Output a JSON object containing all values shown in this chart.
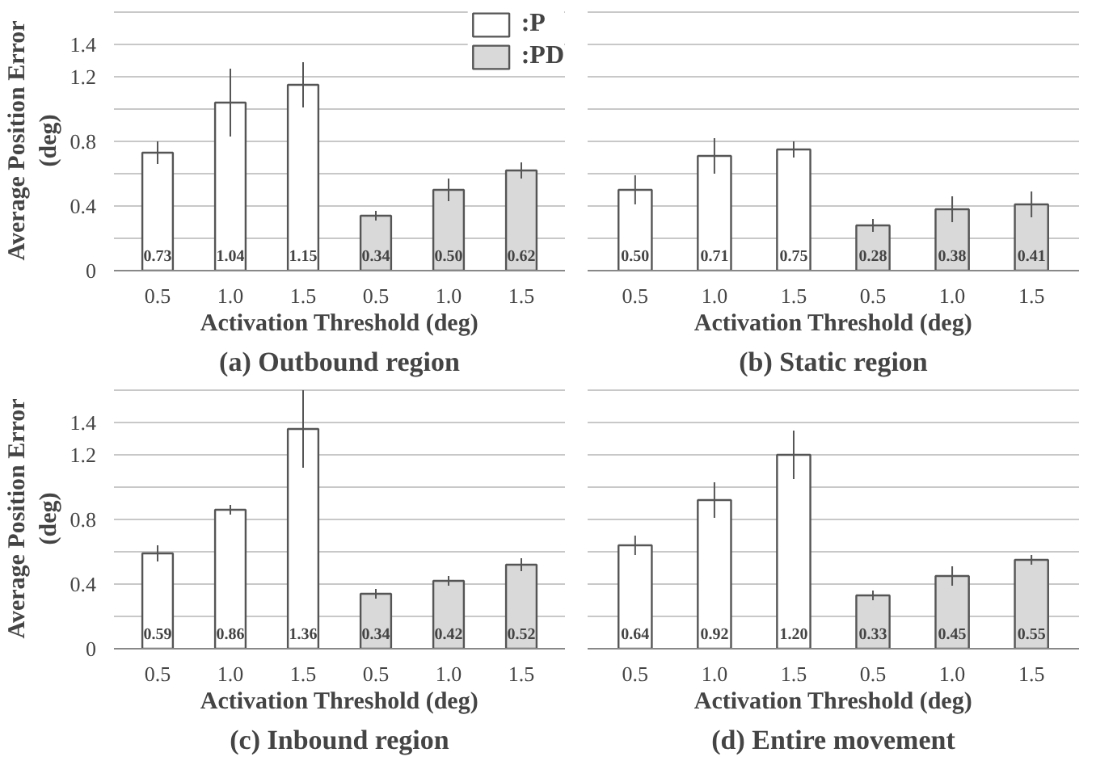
{
  "chart_data": [
    {
      "type": "bar",
      "title": "(a) Outbound region",
      "xlabel": "Activation Threshold (deg)",
      "ylabel": "Average Position Error\n(deg)",
      "categories": [
        "0.5",
        "1.0",
        "1.5",
        "0.5",
        "1.0",
        "1.5"
      ],
      "ylim": [
        0,
        1.61
      ],
      "yticks": [
        0,
        {
          "value": 0.2,
          "label": null
        },
        0.4,
        {
          "value": 0.6,
          "label": null
        },
        0.8,
        {
          "value": 1.0,
          "label": null
        },
        1.2,
        1.4,
        {
          "value": 1.6,
          "label": null
        }
      ],
      "grid": "y",
      "legend": "top right",
      "series": [
        {
          "name": ":P",
          "color": "#ffffff",
          "values": [
            0.73,
            1.04,
            1.15,
            null,
            null,
            null
          ],
          "errors": [
            0.07,
            0.21,
            0.14,
            null,
            null,
            null
          ],
          "value_labels": [
            "0.73",
            "1.04",
            "1.15",
            null,
            null,
            null
          ]
        },
        {
          "name": ":PD",
          "color": "#d9d9d9",
          "values": [
            null,
            null,
            null,
            0.34,
            0.5,
            0.62
          ],
          "errors": [
            null,
            null,
            null,
            0.03,
            0.07,
            0.05
          ],
          "value_labels": [
            null,
            null,
            null,
            "0.34",
            "0.50",
            "0.62"
          ]
        }
      ]
    },
    {
      "type": "bar",
      "title": "(b) Static region",
      "xlabel": "Activation Threshold (deg)",
      "categories": [
        "0.5",
        "1.0",
        "1.5",
        "0.5",
        "1.0",
        "1.5"
      ],
      "ylim": [
        0,
        1.61
      ],
      "yticks": [
        0,
        {
          "value": 0.2,
          "label": null
        },
        0.4,
        {
          "value": 0.6,
          "label": null
        },
        0.8,
        {
          "value": 1.0,
          "label": null
        },
        1.2,
        1.4,
        {
          "value": 1.6,
          "label": null
        }
      ],
      "grid": "y",
      "tick_labels": "x",
      "series": [
        {
          "color": "#ffffff",
          "values": [
            0.5,
            0.71,
            0.75,
            null,
            null,
            null
          ],
          "errors": [
            0.09,
            0.11,
            0.05,
            null,
            null,
            null
          ],
          "value_labels": [
            "0.50",
            "0.71",
            "0.75",
            null,
            null,
            null
          ]
        },
        {
          "color": "#d9d9d9",
          "values": [
            null,
            null,
            null,
            0.28,
            0.38,
            0.41
          ],
          "errors": [
            null,
            null,
            null,
            0.04,
            0.08,
            0.08
          ],
          "value_labels": [
            null,
            null,
            null,
            "0.28",
            "0.38",
            "0.41"
          ]
        }
      ]
    },
    {
      "type": "bar",
      "title": "(c) Inbound region",
      "xlabel": "Activation Threshold (deg)",
      "ylabel": "Average Position Error\n(deg)",
      "categories": [
        "0.5",
        "1.0",
        "1.5",
        "0.5",
        "1.0",
        "1.5"
      ],
      "ylim": [
        0,
        1.61
      ],
      "yticks": [
        0,
        {
          "value": 0.2,
          "label": null
        },
        0.4,
        {
          "value": 0.6,
          "label": null
        },
        0.8,
        {
          "value": 1.0,
          "label": null
        },
        1.2,
        1.4,
        {
          "value": 1.6,
          "label": null
        }
      ],
      "grid": "y",
      "series": [
        {
          "color": "#ffffff",
          "values": [
            0.59,
            0.86,
            1.36,
            null,
            null,
            null
          ],
          "errors": [
            0.05,
            0.03,
            0.24,
            null,
            null,
            null
          ],
          "value_labels": [
            "0.59",
            "0.86",
            "1.36",
            null,
            null,
            null
          ]
        },
        {
          "color": "#d9d9d9",
          "values": [
            null,
            null,
            null,
            0.34,
            0.42,
            0.52
          ],
          "errors": [
            null,
            null,
            null,
            0.03,
            0.03,
            0.04
          ],
          "value_labels": [
            null,
            null,
            null,
            "0.34",
            "0.42",
            "0.52"
          ]
        }
      ]
    },
    {
      "type": "bar",
      "title": "(d) Entire movement",
      "xlabel": "Activation Threshold (deg)",
      "categories": [
        "0.5",
        "1.0",
        "1.5",
        "0.5",
        "1.0",
        "1.5"
      ],
      "ylim": [
        0,
        1.61
      ],
      "yticks": [
        0,
        {
          "value": 0.2,
          "label": null
        },
        0.4,
        {
          "value": 0.6,
          "label": null
        },
        0.8,
        {
          "value": 1.0,
          "label": null
        },
        1.2,
        1.4,
        {
          "value": 1.6,
          "label": null
        }
      ],
      "grid": "y",
      "tick_labels": "x",
      "series": [
        {
          "color": "#ffffff",
          "values": [
            0.64,
            0.92,
            1.2,
            null,
            null,
            null
          ],
          "errors": [
            0.06,
            0.11,
            0.15,
            null,
            null,
            null
          ],
          "value_labels": [
            "0.64",
            "0.92",
            "1.20",
            null,
            null,
            null
          ]
        },
        {
          "color": "#d9d9d9",
          "values": [
            null,
            null,
            null,
            0.33,
            0.45,
            0.55
          ],
          "errors": [
            null,
            null,
            null,
            0.03,
            0.06,
            0.03
          ],
          "value_labels": [
            null,
            null,
            null,
            "0.33",
            "0.45",
            "0.55"
          ]
        }
      ]
    }
  ]
}
